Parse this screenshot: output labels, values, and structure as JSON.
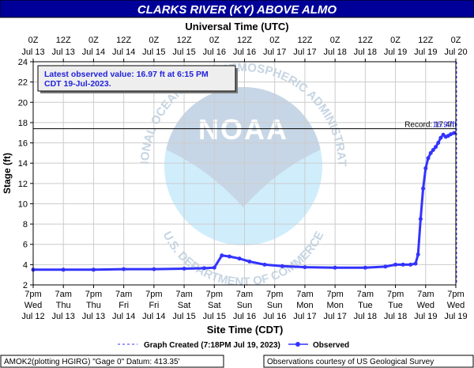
{
  "chart_data": {
    "type": "line",
    "title": "CLARKS RIVER (KY) ABOVE ALMO",
    "top_axis_title": "Universal Time (UTC)",
    "bottom_axis_title": "Site Time (CDT)",
    "ylabel": "Stage (ft)",
    "ylim": [
      2,
      24
    ],
    "y_ticks": [
      2,
      4,
      6,
      8,
      10,
      12,
      14,
      16,
      18,
      20,
      22,
      24
    ],
    "grid": true,
    "xlim_utc": [
      "2023-07-13T00:00Z",
      "2023-07-20T00:00Z"
    ],
    "utc_ticks": [
      {
        "time": "2023-07-13T00:00Z",
        "l1": "0Z",
        "l2": "Jul 13"
      },
      {
        "time": "2023-07-13T12:00Z",
        "l1": "12Z",
        "l2": "Jul 13"
      },
      {
        "time": "2023-07-14T00:00Z",
        "l1": "0Z",
        "l2": "Jul 14"
      },
      {
        "time": "2023-07-14T12:00Z",
        "l1": "12Z",
        "l2": "Jul 14"
      },
      {
        "time": "2023-07-15T00:00Z",
        "l1": "0Z",
        "l2": "Jul 15"
      },
      {
        "time": "2023-07-15T12:00Z",
        "l1": "12Z",
        "l2": "Jul 15"
      },
      {
        "time": "2023-07-16T00:00Z",
        "l1": "0Z",
        "l2": "Jul 16"
      },
      {
        "time": "2023-07-16T12:00Z",
        "l1": "12Z",
        "l2": "Jul 16"
      },
      {
        "time": "2023-07-17T00:00Z",
        "l1": "0Z",
        "l2": "Jul 17"
      },
      {
        "time": "2023-07-17T12:00Z",
        "l1": "12Z",
        "l2": "Jul 17"
      },
      {
        "time": "2023-07-18T00:00Z",
        "l1": "0Z",
        "l2": "Jul 18"
      },
      {
        "time": "2023-07-18T12:00Z",
        "l1": "12Z",
        "l2": "Jul 18"
      },
      {
        "time": "2023-07-19T00:00Z",
        "l1": "0Z",
        "l2": "Jul 19"
      },
      {
        "time": "2023-07-19T12:00Z",
        "l1": "12Z",
        "l2": "Jul 19"
      },
      {
        "time": "2023-07-20T00:00Z",
        "l1": "0Z",
        "l2": "Jul 20"
      }
    ],
    "local_ticks": [
      {
        "time": "2023-07-13T00:00Z",
        "l1": "7pm",
        "l2": "Wed",
        "l3": "Jul 12"
      },
      {
        "time": "2023-07-13T12:00Z",
        "l1": "7am",
        "l2": "Thu",
        "l3": "Jul 13"
      },
      {
        "time": "2023-07-14T00:00Z",
        "l1": "7pm",
        "l2": "Thu",
        "l3": "Jul 13"
      },
      {
        "time": "2023-07-14T12:00Z",
        "l1": "7am",
        "l2": "Fri",
        "l3": "Jul 14"
      },
      {
        "time": "2023-07-15T00:00Z",
        "l1": "7pm",
        "l2": "Fri",
        "l3": "Jul 14"
      },
      {
        "time": "2023-07-15T12:00Z",
        "l1": "7am",
        "l2": "Sat",
        "l3": "Jul 15"
      },
      {
        "time": "2023-07-16T00:00Z",
        "l1": "7pm",
        "l2": "Sat",
        "l3": "Jul 15"
      },
      {
        "time": "2023-07-16T12:00Z",
        "l1": "7am",
        "l2": "Sun",
        "l3": "Jul 16"
      },
      {
        "time": "2023-07-17T00:00Z",
        "l1": "7pm",
        "l2": "Sun",
        "l3": "Jul 16"
      },
      {
        "time": "2023-07-17T12:00Z",
        "l1": "7am",
        "l2": "Mon",
        "l3": "Jul 17"
      },
      {
        "time": "2023-07-18T00:00Z",
        "l1": "7pm",
        "l2": "Mon",
        "l3": "Jul 17"
      },
      {
        "time": "2023-07-18T12:00Z",
        "l1": "7am",
        "l2": "Tue",
        "l3": "Jul 18"
      },
      {
        "time": "2023-07-19T00:00Z",
        "l1": "7pm",
        "l2": "Tue",
        "l3": "Jul 18"
      },
      {
        "time": "2023-07-19T12:00Z",
        "l1": "7am",
        "l2": "Wed",
        "l3": "Jul 19"
      },
      {
        "time": "2023-07-20T00:00Z",
        "l1": "7pm",
        "l2": "Wed",
        "l3": "Jul 19"
      }
    ],
    "record": {
      "value": 17.4,
      "label": "Record: 17.4ft",
      "overlay_label": "16.97ft"
    },
    "graph_created_time": "2023-07-20T00:18Z",
    "latest_line1": "Latest observed value: 16.97 ft at 6:15 PM",
    "latest_line2": "CDT 19-Jul-2023.",
    "legend": {
      "created": "Graph Created (7:18PM Jul 19, 2023)",
      "observed": "Observed"
    },
    "footer": {
      "left": "AMOK2(plotting HGIRG) \"Gage 0\" Datum: 413.35'",
      "right": "Observations courtesy of US Geological Survey"
    },
    "watermark_text": {
      "top": "NATIONAL OCEANIC AND ATMOSPHERIC ADMINISTRATION",
      "bottom": "U.S. DEPARTMENT OF COMMERCE"
    },
    "series": [
      {
        "name": "Observed",
        "color": "#3333ff",
        "x": [
          "2023-07-13T00:00Z",
          "2023-07-13T12:00Z",
          "2023-07-14T00:00Z",
          "2023-07-14T12:00Z",
          "2023-07-15T00:00Z",
          "2023-07-15T12:00Z",
          "2023-07-15T20:00Z",
          "2023-07-16T00:00Z",
          "2023-07-16T03:00Z",
          "2023-07-16T06:00Z",
          "2023-07-16T10:00Z",
          "2023-07-16T14:00Z",
          "2023-07-16T20:00Z",
          "2023-07-17T03:00Z",
          "2023-07-17T12:00Z",
          "2023-07-18T00:00Z",
          "2023-07-18T12:00Z",
          "2023-07-18T20:00Z",
          "2023-07-19T00:00Z",
          "2023-07-19T03:00Z",
          "2023-07-19T06:00Z",
          "2023-07-19T08:00Z",
          "2023-07-19T09:00Z",
          "2023-07-19T10:00Z",
          "2023-07-19T11:00Z",
          "2023-07-19T12:00Z",
          "2023-07-19T13:00Z",
          "2023-07-19T14:00Z",
          "2023-07-19T15:00Z",
          "2023-07-19T16:00Z",
          "2023-07-19T17:00Z",
          "2023-07-19T18:00Z",
          "2023-07-19T19:00Z",
          "2023-07-19T20:00Z",
          "2023-07-19T21:00Z",
          "2023-07-19T22:00Z",
          "2023-07-19T23:15Z"
        ],
        "y": [
          3.5,
          3.5,
          3.5,
          3.55,
          3.55,
          3.6,
          3.65,
          3.7,
          4.9,
          4.8,
          4.6,
          4.3,
          4.0,
          3.85,
          3.75,
          3.7,
          3.7,
          3.8,
          4.0,
          4.0,
          4.0,
          4.1,
          5.0,
          8.5,
          11.5,
          13.5,
          14.5,
          15.0,
          15.3,
          15.6,
          16.0,
          16.5,
          16.8,
          16.6,
          16.7,
          16.85,
          16.97
        ]
      }
    ]
  }
}
